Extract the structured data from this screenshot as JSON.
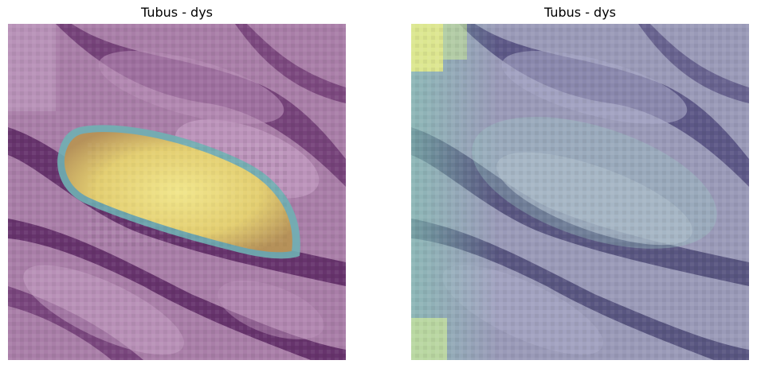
{
  "panels": [
    {
      "title": "Tubus - dys",
      "overlay": "segmentation-mask",
      "colors": {
        "tissue_base": "#a97ea8",
        "stroma_dark": "#5f2c66",
        "mask_fill": "#f2e07a",
        "mask_edge": "#6fb0b3"
      }
    },
    {
      "title": "Tubus - dys",
      "overlay": "heatmap",
      "colors": {
        "tissue_base": "#9a9ab8",
        "stroma_dark": "#4e4a77",
        "heat_high": "#eaf08a",
        "heat_mid": "#86c9b6"
      }
    }
  ]
}
